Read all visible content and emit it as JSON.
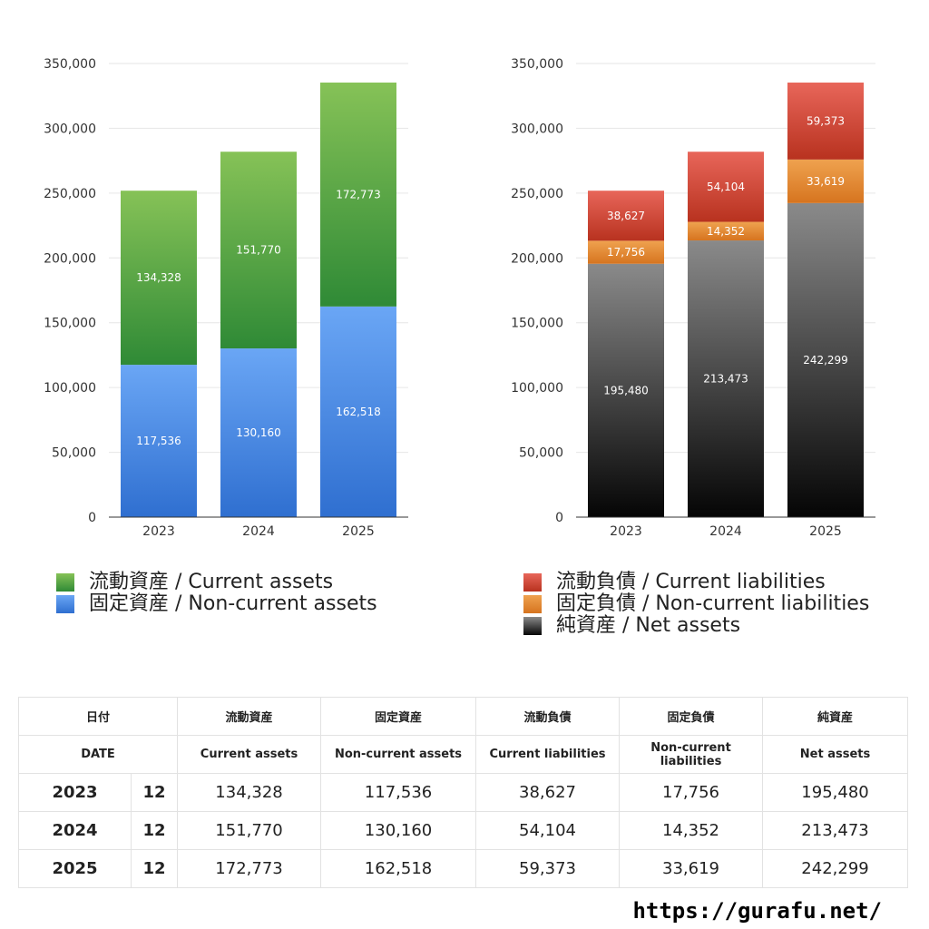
{
  "chart_data": [
    {
      "type": "bar",
      "stacked": true,
      "categories": [
        "2023",
        "2024",
        "2025"
      ],
      "ylim": [
        0,
        350000
      ],
      "yticks": [
        "0",
        "50,000",
        "100,000",
        "150,000",
        "200,000",
        "250,000",
        "300,000",
        "350,000"
      ],
      "grid": true,
      "legend_position": "bottom",
      "series": [
        {
          "name": "固定資産 / Non-current assets",
          "values": [
            117536,
            130160,
            162518
          ],
          "labels": [
            "117,536",
            "130,160",
            "162,518"
          ],
          "color_top": "#6aa6f5",
          "color_bottom": "#2f6fd0"
        },
        {
          "name": "流動資産 / Current assets",
          "values": [
            134328,
            151770,
            172773
          ],
          "labels": [
            "134,328",
            "151,770",
            "172,773"
          ],
          "color_top": "#86c257",
          "color_bottom": "#2f8a36"
        }
      ]
    },
    {
      "type": "bar",
      "stacked": true,
      "categories": [
        "2023",
        "2024",
        "2025"
      ],
      "ylim": [
        0,
        350000
      ],
      "yticks": [
        "0",
        "50,000",
        "100,000",
        "150,000",
        "200,000",
        "250,000",
        "300,000",
        "350,000"
      ],
      "grid": true,
      "legend_position": "bottom",
      "series": [
        {
          "name": "純資産 / Net assets",
          "values": [
            195480,
            213473,
            242299
          ],
          "labels": [
            "195,480",
            "213,473",
            "242,299"
          ],
          "color_top": "#8a8a8a",
          "color_bottom": "#050505"
        },
        {
          "name": "固定負債 / Non-current liabilities",
          "values": [
            17756,
            14352,
            33619
          ],
          "labels": [
            "17,756",
            "14,352",
            "33,619"
          ],
          "color_top": "#efa24f",
          "color_bottom": "#d6741f"
        },
        {
          "name": "流動負債 / Current liabilities",
          "values": [
            38627,
            54104,
            59373
          ],
          "labels": [
            "38,627",
            "54,104",
            "59,373"
          ],
          "color_top": "#e8665a",
          "color_bottom": "#b8321f"
        }
      ]
    }
  ],
  "legends": {
    "left": [
      {
        "label": "流動資産 / Current assets",
        "color": "#4ea345"
      },
      {
        "label": "固定資産 / Non-current assets",
        "color": "#3f86e0"
      }
    ],
    "right": [
      {
        "label": "流動負債 / Current liabilities",
        "color": "#d84434"
      },
      {
        "label": "固定負債 / Non-current liabilities",
        "color": "#e68a35"
      },
      {
        "label": "純資産 / Net assets",
        "color": "#2a2a2a"
      }
    ]
  },
  "table": {
    "header_jp": [
      "日付",
      "流動資産",
      "固定資産",
      "流動負債",
      "固定負債",
      "純資産"
    ],
    "header_en": [
      "DATE",
      "Current assets",
      "Non-current assets",
      "Current liabilities",
      "Non-current liabilities",
      "Net assets"
    ],
    "rows": [
      {
        "year": "2023",
        "month": "12",
        "cells": [
          "134,328",
          "117,536",
          "38,627",
          "17,756",
          "195,480"
        ]
      },
      {
        "year": "2024",
        "month": "12",
        "cells": [
          "151,770",
          "130,160",
          "54,104",
          "14,352",
          "213,473"
        ]
      },
      {
        "year": "2025",
        "month": "12",
        "cells": [
          "172,773",
          "162,518",
          "59,373",
          "33,619",
          "242,299"
        ]
      }
    ]
  },
  "footer": {
    "url": "https://gurafu.net/"
  }
}
